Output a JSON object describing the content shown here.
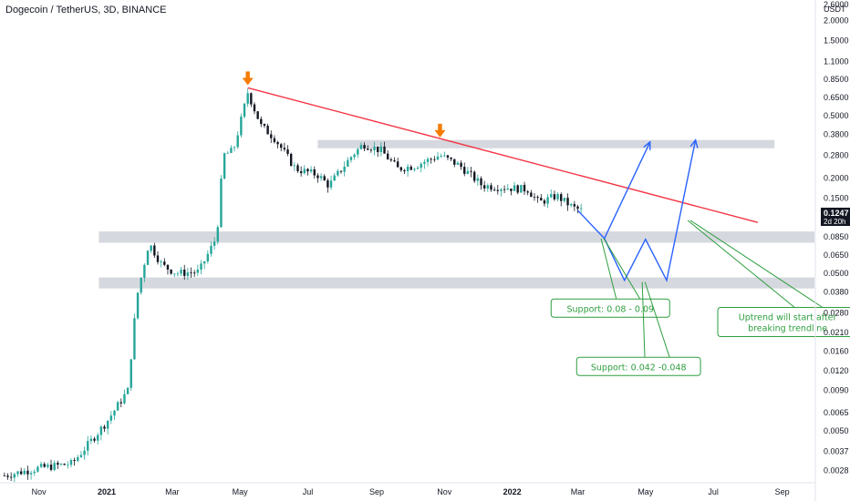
{
  "header": {
    "symbol_title": "Dogecoin / TetherUS, 3D, BINANCE"
  },
  "price_scale": {
    "currency": "USDT",
    "current_price": "0.1247",
    "countdown": "2d 20h"
  },
  "colors": {
    "up": "#26a69a",
    "down": "#131722",
    "trendline": "#f23645",
    "projection": "#2962ff",
    "annotation": "#2e9e3f",
    "zone": "#d1d4dc",
    "marker": "#f57c00"
  },
  "chart_data": {
    "type": "candlestick",
    "scale": "log",
    "ylim": [
      0.0025,
      2.6
    ],
    "y_tick_labels": [
      "2.6000",
      "2.0000",
      "1.5000",
      "1.1000",
      "0.8500",
      "0.6500",
      "0.5000",
      "0.3800",
      "0.2800",
      "0.2000",
      "0.1500",
      "0.1100",
      "0.0850",
      "0.0650",
      "0.0500",
      "0.0380",
      "0.0280",
      "0.0210",
      "0.0160",
      "0.0120",
      "0.0090",
      "0.0065",
      "0.0050",
      "0.0037",
      "0.0028"
    ],
    "x_tick_labels": [
      "Nov",
      "2021",
      "Mar",
      "May",
      "Jul",
      "Sep",
      "Nov",
      "2022",
      "Mar",
      "May",
      "Jul",
      "Sep"
    ],
    "x_tick_dates": [
      "2020-11-01",
      "2021-01-01",
      "2021-03-01",
      "2021-05-01",
      "2021-07-01",
      "2021-09-01",
      "2021-11-01",
      "2022-01-01",
      "2022-03-01",
      "2022-05-01",
      "2022-07-01",
      "2022-09-01"
    ],
    "xlim": [
      "2020-09-27",
      "2022-09-30"
    ],
    "price_path": [
      {
        "date": "2020-10-01",
        "close": 0.0026
      },
      {
        "date": "2020-11-01",
        "close": 0.0029
      },
      {
        "date": "2020-12-01",
        "close": 0.0031
      },
      {
        "date": "2020-12-20",
        "close": 0.0045
      },
      {
        "date": "2021-01-01",
        "close": 0.0057
      },
      {
        "date": "2021-01-20",
        "close": 0.009
      },
      {
        "date": "2021-01-28",
        "close": 0.035
      },
      {
        "date": "2021-02-08",
        "close": 0.078
      },
      {
        "date": "2021-02-20",
        "close": 0.056
      },
      {
        "date": "2021-03-05",
        "close": 0.05
      },
      {
        "date": "2021-03-25",
        "close": 0.051
      },
      {
        "date": "2021-04-10",
        "close": 0.085
      },
      {
        "date": "2021-04-16",
        "close": 0.28
      },
      {
        "date": "2021-04-25",
        "close": 0.3
      },
      {
        "date": "2021-05-03",
        "close": 0.5
      },
      {
        "date": "2021-05-08",
        "close": 0.7
      },
      {
        "date": "2021-05-20",
        "close": 0.43
      },
      {
        "date": "2021-06-01",
        "close": 0.36
      },
      {
        "date": "2021-06-20",
        "close": 0.23
      },
      {
        "date": "2021-07-10",
        "close": 0.21
      },
      {
        "date": "2021-07-20",
        "close": 0.18
      },
      {
        "date": "2021-08-10",
        "close": 0.28
      },
      {
        "date": "2021-08-20",
        "close": 0.33
      },
      {
        "date": "2021-09-05",
        "close": 0.3
      },
      {
        "date": "2021-09-20",
        "close": 0.23
      },
      {
        "date": "2021-10-05",
        "close": 0.24
      },
      {
        "date": "2021-10-28",
        "close": 0.28
      },
      {
        "date": "2021-11-15",
        "close": 0.24
      },
      {
        "date": "2021-12-05",
        "close": 0.18
      },
      {
        "date": "2021-12-25",
        "close": 0.175
      },
      {
        "date": "2022-01-15",
        "close": 0.17
      },
      {
        "date": "2022-01-25",
        "close": 0.14
      },
      {
        "date": "2022-02-10",
        "close": 0.155
      },
      {
        "date": "2022-02-25",
        "close": 0.13
      },
      {
        "date": "2022-03-05",
        "close": 0.1247
      }
    ],
    "resistance_trendline": [
      {
        "date": "2021-05-08",
        "price": 0.75
      },
      {
        "date": "2022-08-10",
        "price": 0.105
      }
    ],
    "arrow_markers": [
      {
        "date": "2021-05-08",
        "price": 0.73
      },
      {
        "date": "2021-10-28",
        "price": 0.34
      }
    ],
    "zones": [
      {
        "from": "2021-07-10",
        "to": "2022-08-25",
        "low": 0.31,
        "high": 0.35
      },
      {
        "from": "2020-12-25",
        "to": "2022-09-30",
        "low": 0.078,
        "high": 0.092
      },
      {
        "from": "2020-12-25",
        "to": "2022-09-30",
        "low": 0.04,
        "high": 0.047
      }
    ],
    "projections": [
      {
        "name": "projection-a",
        "points": [
          {
            "date": "2022-03-01",
            "price": 0.125
          },
          {
            "date": "2022-03-25",
            "price": 0.083
          },
          {
            "date": "2022-04-12",
            "price": 0.045
          },
          {
            "date": "2022-05-01",
            "price": 0.082
          },
          {
            "date": "2022-05-20",
            "price": 0.045
          },
          {
            "date": "2022-06-15",
            "price": 0.35
          }
        ]
      },
      {
        "name": "projection-b",
        "points": [
          {
            "date": "2022-03-25",
            "price": 0.083
          },
          {
            "date": "2022-05-05",
            "price": 0.34
          }
        ]
      }
    ],
    "annotations": [
      {
        "text": "Support: 0.08 - 0.09",
        "target": {
          "date": "2022-03-22",
          "price": 0.083
        },
        "box_date": "2022-02-05",
        "box_price": 0.03,
        "lines": [
          "Support: 0.08 - 0.09"
        ]
      },
      {
        "text": "Support: 0.042 -0.048",
        "target": {
          "date": "2022-04-28",
          "price": 0.044
        },
        "box_date": "2022-02-28",
        "box_price": 0.0128,
        "lines": [
          "Support: 0.042 -0.048"
        ]
      },
      {
        "text": "Uptrend will start after breaking trendline",
        "target": {
          "date": "2022-06-08",
          "price": 0.108
        },
        "box_date": "2022-07-05",
        "box_price": 0.0245,
        "lines": [
          "Uptrend will start after",
          "breaking trendline"
        ]
      }
    ]
  }
}
